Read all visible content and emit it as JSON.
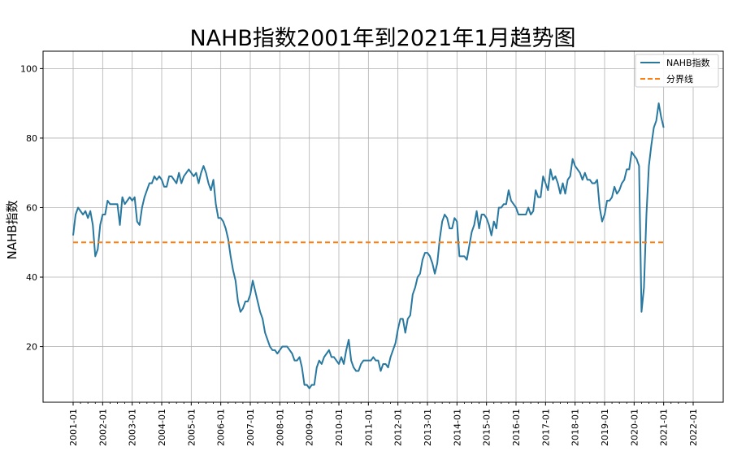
{
  "chart_data": {
    "type": "line",
    "title": "NAHB指数2001年到2021年1月趋势图",
    "xlabel": "",
    "ylabel": "NAHB指数",
    "x_ticks": [
      "2001-01",
      "2002-01",
      "2003-01",
      "2004-01",
      "2005-01",
      "2006-01",
      "2007-01",
      "2008-01",
      "2009-01",
      "2010-01",
      "2011-01",
      "2012-01",
      "2013-01",
      "2014-01",
      "2015-01",
      "2016-01",
      "2017-01",
      "2018-01",
      "2019-01",
      "2020-01",
      "2021-01",
      "2022-01"
    ],
    "y_ticks": [
      "20",
      "40",
      "60",
      "80",
      "100"
    ],
    "xlim": [
      "2001-01",
      "2022-01"
    ],
    "ylim": [
      4,
      105
    ],
    "grid": true,
    "legend_position": "top-right",
    "series": [
      {
        "name": "NAHB指数",
        "color": "#2878a0",
        "style": "solid",
        "points": [
          [
            "2001-01",
            52
          ],
          [
            "2001-02",
            58
          ],
          [
            "2001-03",
            60
          ],
          [
            "2001-04",
            59
          ],
          [
            "2001-05",
            58
          ],
          [
            "2001-06",
            59
          ],
          [
            "2001-07",
            57
          ],
          [
            "2001-08",
            59
          ],
          [
            "2001-09",
            55
          ],
          [
            "2001-10",
            46
          ],
          [
            "2001-11",
            48
          ],
          [
            "2001-12",
            55
          ],
          [
            "2002-01",
            58
          ],
          [
            "2002-02",
            58
          ],
          [
            "2002-03",
            62
          ],
          [
            "2002-04",
            61
          ],
          [
            "2002-05",
            61
          ],
          [
            "2002-06",
            61
          ],
          [
            "2002-07",
            61
          ],
          [
            "2002-08",
            55
          ],
          [
            "2002-09",
            63
          ],
          [
            "2002-10",
            61
          ],
          [
            "2002-11",
            62
          ],
          [
            "2002-12",
            63
          ],
          [
            "2003-01",
            62
          ],
          [
            "2003-02",
            63
          ],
          [
            "2003-03",
            56
          ],
          [
            "2003-04",
            55
          ],
          [
            "2003-05",
            60
          ],
          [
            "2003-06",
            63
          ],
          [
            "2003-07",
            65
          ],
          [
            "2003-08",
            67
          ],
          [
            "2003-09",
            67
          ],
          [
            "2003-10",
            69
          ],
          [
            "2003-11",
            68
          ],
          [
            "2003-12",
            69
          ],
          [
            "2004-01",
            68
          ],
          [
            "2004-02",
            66
          ],
          [
            "2004-03",
            66
          ],
          [
            "2004-04",
            69
          ],
          [
            "2004-05",
            69
          ],
          [
            "2004-06",
            68
          ],
          [
            "2004-07",
            67
          ],
          [
            "2004-08",
            70
          ],
          [
            "2004-09",
            67
          ],
          [
            "2004-10",
            69
          ],
          [
            "2004-11",
            70
          ],
          [
            "2004-12",
            71
          ],
          [
            "2005-01",
            70
          ],
          [
            "2005-02",
            69
          ],
          [
            "2005-03",
            70
          ],
          [
            "2005-04",
            67
          ],
          [
            "2005-05",
            70
          ],
          [
            "2005-06",
            72
          ],
          [
            "2005-07",
            70
          ],
          [
            "2005-08",
            67
          ],
          [
            "2005-09",
            65
          ],
          [
            "2005-10",
            68
          ],
          [
            "2005-11",
            61
          ],
          [
            "2005-12",
            57
          ],
          [
            "2006-01",
            57
          ],
          [
            "2006-02",
            56
          ],
          [
            "2006-03",
            54
          ],
          [
            "2006-04",
            51
          ],
          [
            "2006-05",
            46
          ],
          [
            "2006-06",
            42
          ],
          [
            "2006-07",
            39
          ],
          [
            "2006-08",
            33
          ],
          [
            "2006-09",
            30
          ],
          [
            "2006-10",
            31
          ],
          [
            "2006-11",
            33
          ],
          [
            "2006-12",
            33
          ],
          [
            "2007-01",
            35
          ],
          [
            "2007-02",
            39
          ],
          [
            "2007-03",
            36
          ],
          [
            "2007-04",
            33
          ],
          [
            "2007-05",
            30
          ],
          [
            "2007-06",
            28
          ],
          [
            "2007-07",
            24
          ],
          [
            "2007-08",
            22
          ],
          [
            "2007-09",
            20
          ],
          [
            "2007-10",
            19
          ],
          [
            "2007-11",
            19
          ],
          [
            "2007-12",
            18
          ],
          [
            "2008-01",
            19
          ],
          [
            "2008-02",
            20
          ],
          [
            "2008-03",
            20
          ],
          [
            "2008-04",
            20
          ],
          [
            "2008-05",
            19
          ],
          [
            "2008-06",
            18
          ],
          [
            "2008-07",
            16
          ],
          [
            "2008-08",
            16
          ],
          [
            "2008-09",
            17
          ],
          [
            "2008-10",
            14
          ],
          [
            "2008-11",
            9
          ],
          [
            "2008-12",
            9
          ],
          [
            "2009-01",
            8
          ],
          [
            "2009-02",
            9
          ],
          [
            "2009-03",
            9
          ],
          [
            "2009-04",
            14
          ],
          [
            "2009-05",
            16
          ],
          [
            "2009-06",
            15
          ],
          [
            "2009-07",
            17
          ],
          [
            "2009-08",
            18
          ],
          [
            "2009-09",
            19
          ],
          [
            "2009-10",
            17
          ],
          [
            "2009-11",
            17
          ],
          [
            "2009-12",
            16
          ],
          [
            "2010-01",
            15
          ],
          [
            "2010-02",
            17
          ],
          [
            "2010-03",
            15
          ],
          [
            "2010-04",
            19
          ],
          [
            "2010-05",
            22
          ],
          [
            "2010-06",
            16
          ],
          [
            "2010-07",
            14
          ],
          [
            "2010-08",
            13
          ],
          [
            "2010-09",
            13
          ],
          [
            "2010-10",
            15
          ],
          [
            "2010-11",
            16
          ],
          [
            "2010-12",
            16
          ],
          [
            "2011-01",
            16
          ],
          [
            "2011-02",
            16
          ],
          [
            "2011-03",
            17
          ],
          [
            "2011-04",
            16
          ],
          [
            "2011-05",
            16
          ],
          [
            "2011-06",
            13
          ],
          [
            "2011-07",
            15
          ],
          [
            "2011-08",
            15
          ],
          [
            "2011-09",
            14
          ],
          [
            "2011-10",
            17
          ],
          [
            "2011-11",
            19
          ],
          [
            "2011-12",
            21
          ],
          [
            "2012-01",
            25
          ],
          [
            "2012-02",
            28
          ],
          [
            "2012-03",
            28
          ],
          [
            "2012-04",
            24
          ],
          [
            "2012-05",
            28
          ],
          [
            "2012-06",
            29
          ],
          [
            "2012-07",
            35
          ],
          [
            "2012-08",
            37
          ],
          [
            "2012-09",
            40
          ],
          [
            "2012-10",
            41
          ],
          [
            "2012-11",
            45
          ],
          [
            "2012-12",
            47
          ],
          [
            "2013-01",
            47
          ],
          [
            "2013-02",
            46
          ],
          [
            "2013-03",
            44
          ],
          [
            "2013-04",
            41
          ],
          [
            "2013-05",
            44
          ],
          [
            "2013-06",
            51
          ],
          [
            "2013-07",
            56
          ],
          [
            "2013-08",
            58
          ],
          [
            "2013-09",
            57
          ],
          [
            "2013-10",
            54
          ],
          [
            "2013-11",
            54
          ],
          [
            "2013-12",
            57
          ],
          [
            "2014-01",
            56
          ],
          [
            "2014-02",
            46
          ],
          [
            "2014-03",
            46
          ],
          [
            "2014-04",
            46
          ],
          [
            "2014-05",
            45
          ],
          [
            "2014-06",
            49
          ],
          [
            "2014-07",
            53
          ],
          [
            "2014-08",
            55
          ],
          [
            "2014-09",
            59
          ],
          [
            "2014-10",
            54
          ],
          [
            "2014-11",
            58
          ],
          [
            "2014-12",
            58
          ],
          [
            "2015-01",
            57
          ],
          [
            "2015-02",
            55
          ],
          [
            "2015-03",
            52
          ],
          [
            "2015-04",
            56
          ],
          [
            "2015-05",
            54
          ],
          [
            "2015-06",
            60
          ],
          [
            "2015-07",
            60
          ],
          [
            "2015-08",
            61
          ],
          [
            "2015-09",
            61
          ],
          [
            "2015-10",
            65
          ],
          [
            "2015-11",
            62
          ],
          [
            "2015-12",
            61
          ],
          [
            "2016-01",
            60
          ],
          [
            "2016-02",
            58
          ],
          [
            "2016-03",
            58
          ],
          [
            "2016-04",
            58
          ],
          [
            "2016-05",
            58
          ],
          [
            "2016-06",
            60
          ],
          [
            "2016-07",
            58
          ],
          [
            "2016-08",
            59
          ],
          [
            "2016-09",
            65
          ],
          [
            "2016-10",
            63
          ],
          [
            "2016-11",
            63
          ],
          [
            "2016-12",
            69
          ],
          [
            "2017-01",
            67
          ],
          [
            "2017-02",
            65
          ],
          [
            "2017-03",
            71
          ],
          [
            "2017-04",
            68
          ],
          [
            "2017-05",
            69
          ],
          [
            "2017-06",
            67
          ],
          [
            "2017-07",
            64
          ],
          [
            "2017-08",
            67
          ],
          [
            "2017-09",
            64
          ],
          [
            "2017-10",
            68
          ],
          [
            "2017-11",
            69
          ],
          [
            "2017-12",
            74
          ],
          [
            "2018-01",
            72
          ],
          [
            "2018-02",
            71
          ],
          [
            "2018-03",
            70
          ],
          [
            "2018-04",
            68
          ],
          [
            "2018-05",
            70
          ],
          [
            "2018-06",
            68
          ],
          [
            "2018-07",
            68
          ],
          [
            "2018-08",
            67
          ],
          [
            "2018-09",
            67
          ],
          [
            "2018-10",
            68
          ],
          [
            "2018-11",
            60
          ],
          [
            "2018-12",
            56
          ],
          [
            "2019-01",
            58
          ],
          [
            "2019-02",
            62
          ],
          [
            "2019-03",
            62
          ],
          [
            "2019-04",
            63
          ],
          [
            "2019-05",
            66
          ],
          [
            "2019-06",
            64
          ],
          [
            "2019-07",
            65
          ],
          [
            "2019-08",
            67
          ],
          [
            "2019-09",
            68
          ],
          [
            "2019-10",
            71
          ],
          [
            "2019-11",
            71
          ],
          [
            "2019-12",
            76
          ],
          [
            "2020-01",
            75
          ],
          [
            "2020-02",
            74
          ],
          [
            "2020-03",
            72
          ],
          [
            "2020-04",
            30
          ],
          [
            "2020-05",
            37
          ],
          [
            "2020-06",
            58
          ],
          [
            "2020-07",
            72
          ],
          [
            "2020-08",
            78
          ],
          [
            "2020-09",
            83
          ],
          [
            "2020-10",
            85
          ],
          [
            "2020-11",
            90
          ],
          [
            "2020-12",
            86
          ],
          [
            "2021-01",
            83
          ]
        ]
      },
      {
        "name": "分界线",
        "color": "#ff7f0e",
        "style": "dashed",
        "points": [
          [
            "2001-01",
            50
          ],
          [
            "2021-01",
            50
          ]
        ]
      }
    ]
  }
}
